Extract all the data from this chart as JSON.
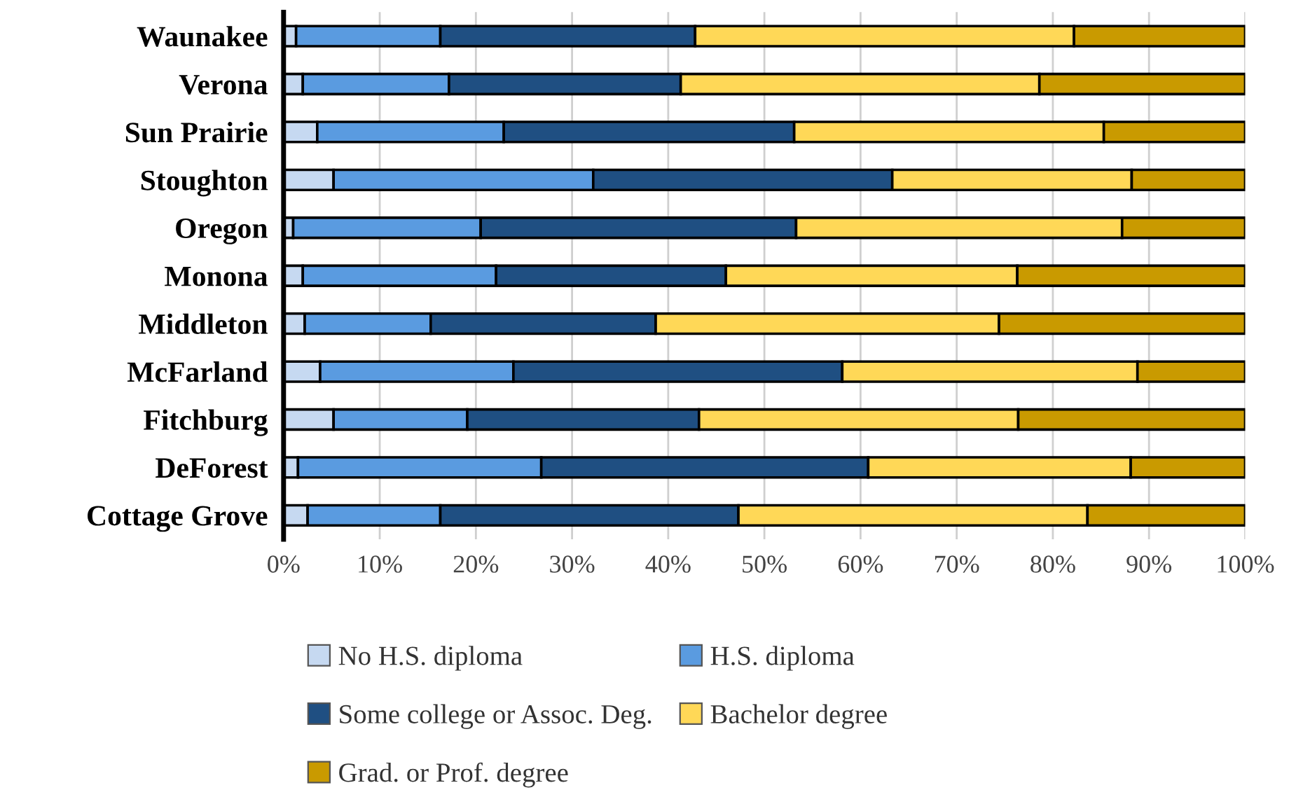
{
  "chart_data": {
    "type": "bar",
    "orientation": "horizontal",
    "stacked": true,
    "categories": [
      "Waunakee",
      "Verona",
      "Sun Prairie",
      "Stoughton",
      "Oregon",
      "Monona",
      "Middleton",
      "McFarland",
      "Fitchburg",
      "DeForest",
      "Cottage Grove"
    ],
    "series": [
      {
        "name": "No H.S. diploma",
        "color": "#c6d9f1",
        "values": [
          1.3,
          2.0,
          3.5,
          5.2,
          1.0,
          2.0,
          2.2,
          3.8,
          5.2,
          1.5,
          2.5
        ]
      },
      {
        "name": "H.S. diploma",
        "color": "#5a9be0",
        "values": [
          15.0,
          15.2,
          19.4,
          27.0,
          19.5,
          20.1,
          13.1,
          20.1,
          13.9,
          25.3,
          13.8
        ]
      },
      {
        "name": "Some college or Assoc. Deg.",
        "color": "#1f4f82",
        "values": [
          26.5,
          24.1,
          30.2,
          31.1,
          32.8,
          23.9,
          23.4,
          34.2,
          24.1,
          34.0,
          31.0
        ]
      },
      {
        "name": "Bachelor degree",
        "color": "#ffd857",
        "values": [
          39.4,
          37.3,
          32.2,
          24.9,
          33.9,
          30.3,
          35.7,
          30.7,
          33.2,
          27.3,
          36.3
        ]
      },
      {
        "name": "Grad. or Prof. degree",
        "color": "#c99a00",
        "values": [
          17.8,
          21.4,
          14.7,
          11.8,
          12.8,
          23.7,
          25.6,
          11.2,
          23.6,
          11.9,
          16.4
        ]
      }
    ],
    "xlim": [
      0,
      100
    ],
    "xticks": [
      {
        "value": 0,
        "label": "0%"
      },
      {
        "value": 10,
        "label": "10%"
      },
      {
        "value": 20,
        "label": "20%"
      },
      {
        "value": 30,
        "label": "30%"
      },
      {
        "value": 40,
        "label": "40%"
      },
      {
        "value": 50,
        "label": "50%"
      },
      {
        "value": 60,
        "label": "60%"
      },
      {
        "value": 70,
        "label": "70%"
      },
      {
        "value": 80,
        "label": "80%"
      },
      {
        "value": 90,
        "label": "90%"
      },
      {
        "value": 100,
        "label": "100%"
      }
    ],
    "grid": "x",
    "legend": "bottom"
  }
}
